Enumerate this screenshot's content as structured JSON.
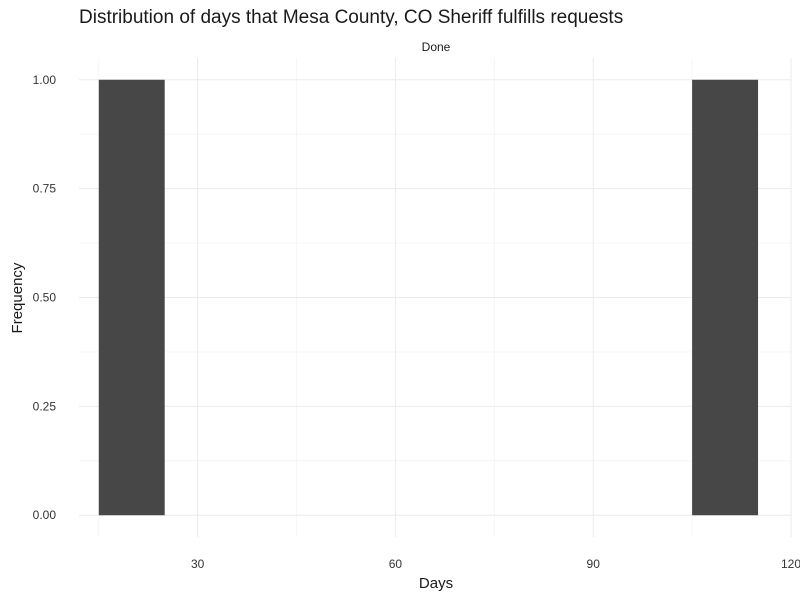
{
  "chart_data": {
    "type": "bar",
    "title": "Distribution of days that Mesa County, CO Sheriff fulfills requests",
    "facet": "Done",
    "xlabel": "Days",
    "ylabel": "Frequency",
    "xlim": [
      12,
      120
    ],
    "ylim": [
      -0.05,
      1.05
    ],
    "x_ticks": [
      30,
      60,
      90,
      120
    ],
    "x_tick_labels": [
      "30",
      "60",
      "90",
      "120"
    ],
    "y_ticks": [
      0,
      0.25,
      0.5,
      0.75,
      1
    ],
    "y_tick_labels": [
      "0.00",
      "0.25",
      "0.50",
      "0.75",
      "1.00"
    ],
    "bins": [
      {
        "x_start": 15,
        "x_end": 25,
        "count": 1
      },
      {
        "x_start": 105,
        "x_end": 115,
        "count": 1
      }
    ],
    "grid": true,
    "legend": "none",
    "colors": {
      "bar": "#474747",
      "grid": "#ebebeb"
    }
  }
}
